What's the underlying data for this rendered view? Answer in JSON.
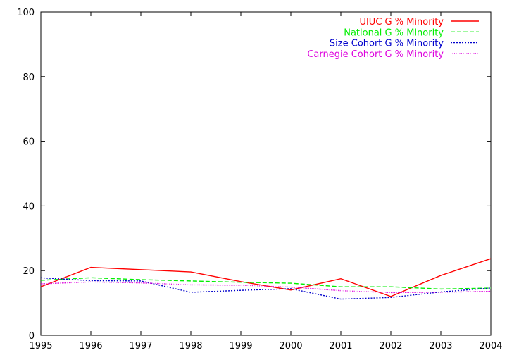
{
  "chart_data": {
    "type": "line",
    "title": "",
    "xlabel": "",
    "ylabel": "",
    "x": [
      1995,
      1996,
      1997,
      1998,
      1999,
      2000,
      2001,
      2002,
      2003,
      2004
    ],
    "xlim": [
      1995,
      2004
    ],
    "ylim": [
      0,
      100
    ],
    "xticks": [
      "1995",
      "1996",
      "1997",
      "1998",
      "1999",
      "2000",
      "2001",
      "2002",
      "2003",
      "2004"
    ],
    "yticks": [
      "0",
      "20",
      "40",
      "60",
      "80",
      "100"
    ],
    "grid": false,
    "legend_position": "top-right",
    "series": [
      {
        "name": "UIUC G % Minority",
        "color": "#ff0000",
        "dash": "solid",
        "values": [
          15.0,
          21.0,
          20.3,
          19.6,
          16.6,
          14.0,
          17.5,
          12.0,
          18.5,
          23.7
        ]
      },
      {
        "name": "National G % Minority",
        "color": "#00ee00",
        "dash": "dashed",
        "values": [
          17.0,
          17.8,
          17.2,
          16.8,
          16.4,
          16.1,
          15.0,
          15.0,
          14.3,
          14.6
        ]
      },
      {
        "name": "Size Cohort G % Minority",
        "color": "#0000cc",
        "dash": "dotted",
        "values": [
          17.8,
          16.9,
          16.8,
          13.3,
          13.9,
          14.4,
          11.2,
          11.7,
          13.4,
          14.6
        ]
      },
      {
        "name": "Carnegie Cohort G % Minority",
        "color": "#dd00dd",
        "dash": "fine-dotted",
        "values": [
          15.9,
          16.5,
          16.2,
          15.6,
          15.5,
          14.9,
          13.8,
          13.2,
          13.3,
          13.6
        ]
      }
    ]
  }
}
